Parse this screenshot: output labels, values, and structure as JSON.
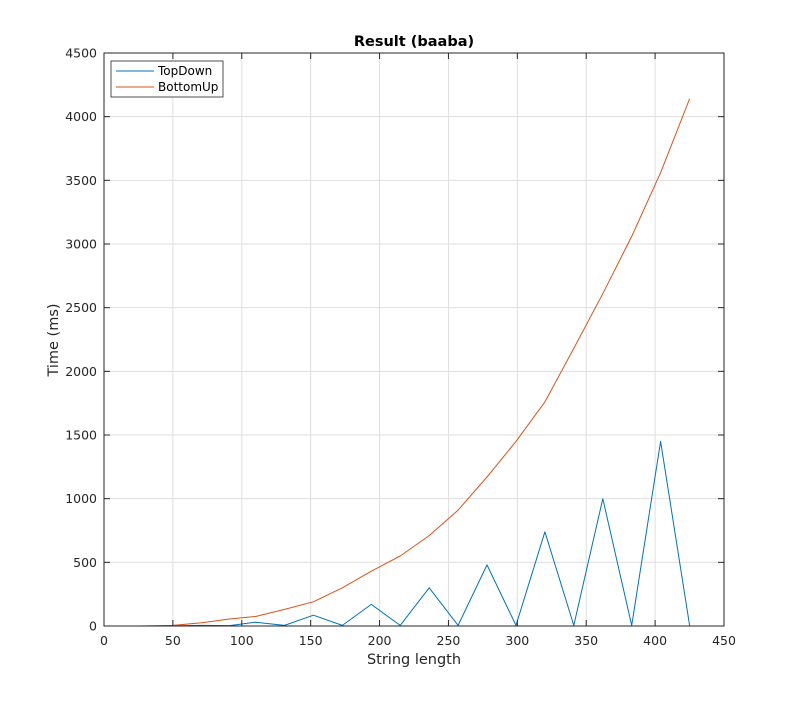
{
  "chart_data": {
    "type": "line",
    "title": "Result (baaba)",
    "xlabel": "String length",
    "ylabel": "Time (ms)",
    "xlim": [
      0,
      450
    ],
    "ylim": [
      0,
      4500
    ],
    "xticks": [
      0,
      50,
      100,
      150,
      200,
      250,
      300,
      350,
      400,
      450
    ],
    "yticks": [
      0,
      500,
      1000,
      1500,
      2000,
      2500,
      3000,
      3500,
      4000,
      4500
    ],
    "grid": true,
    "legend_position": "top-left",
    "series": [
      {
        "name": "TopDown",
        "color": "#0072BD",
        "x": [
          50,
          71,
          91,
          110,
          131,
          152,
          173,
          194,
          215,
          236,
          257,
          278,
          299,
          320,
          341,
          362,
          383,
          404,
          425
        ],
        "y": [
          2,
          5,
          3,
          30,
          5,
          85,
          5,
          170,
          5,
          300,
          5,
          480,
          5,
          740,
          5,
          1000,
          5,
          1450,
          5
        ]
      },
      {
        "name": "BottomUp",
        "color": "#D95319",
        "x": [
          25,
          50,
          71,
          91,
          110,
          131,
          152,
          173,
          194,
          215,
          236,
          257,
          278,
          299,
          320,
          341,
          362,
          383,
          404,
          425
        ],
        "y": [
          0,
          5,
          25,
          55,
          75,
          130,
          190,
          300,
          430,
          550,
          710,
          910,
          1170,
          1450,
          1760,
          2180,
          2610,
          3060,
          3560,
          4140
        ]
      }
    ]
  }
}
